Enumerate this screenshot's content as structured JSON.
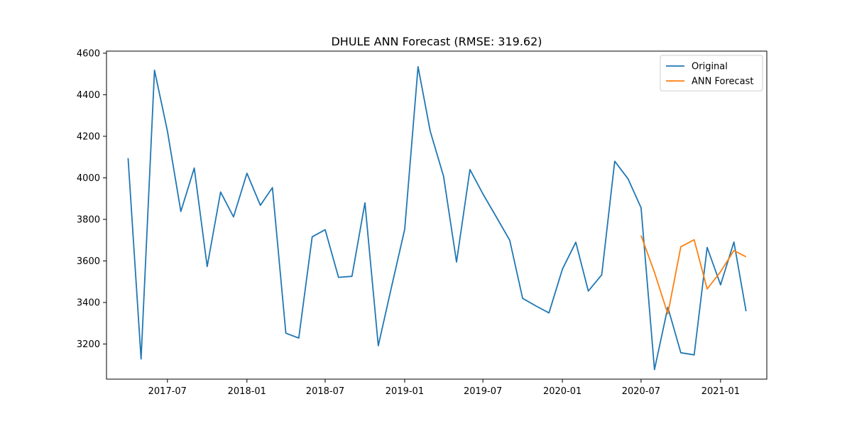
{
  "chart_data": {
    "type": "line",
    "title": "DHULE ANN Forecast (RMSE: 319.62)",
    "xlabel": "",
    "ylabel": "",
    "x_tick_labels": [
      "2017-07",
      "2018-01",
      "2018-07",
      "2019-01",
      "2019-07",
      "2020-01",
      "2020-07",
      "2021-01"
    ],
    "x_ticks": [
      "2017-07-01",
      "2018-01-01",
      "2018-07-01",
      "2019-01-01",
      "2019-07-01",
      "2020-01-01",
      "2020-07-01",
      "2021-01-01"
    ],
    "y_ticks": [
      3200,
      3400,
      3600,
      3800,
      4000,
      4200,
      4400,
      4600
    ],
    "xlim": [
      "2017-02-10",
      "2021-04-18"
    ],
    "ylim": [
      3031,
      4610
    ],
    "grid": false,
    "legend_position": "top-right",
    "series": [
      {
        "name": "Original",
        "color": "#1f77b4",
        "x": [
          "2017-04-01",
          "2017-05-01",
          "2017-06-01",
          "2017-07-01",
          "2017-08-01",
          "2017-09-01",
          "2017-10-01",
          "2017-11-01",
          "2017-12-01",
          "2018-01-01",
          "2018-02-01",
          "2018-03-01",
          "2018-04-01",
          "2018-05-01",
          "2018-06-01",
          "2018-07-01",
          "2018-08-01",
          "2018-09-01",
          "2018-10-01",
          "2018-11-01",
          "2018-12-01",
          "2019-01-01",
          "2019-02-01",
          "2019-03-01",
          "2019-04-01",
          "2019-05-01",
          "2019-06-01",
          "2019-07-01",
          "2019-08-01",
          "2019-09-01",
          "2019-10-01",
          "2019-11-01",
          "2019-12-01",
          "2020-01-01",
          "2020-02-01",
          "2020-03-01",
          "2020-04-01",
          "2020-05-01",
          "2020-06-01",
          "2020-07-01",
          "2020-08-01",
          "2020-09-01",
          "2020-10-01",
          "2020-11-01",
          "2020-12-01",
          "2021-01-01",
          "2021-02-01",
          "2021-03-01"
        ],
        "values": [
          4095,
          3128,
          4518,
          4225,
          3838,
          4047,
          3573,
          3932,
          3812,
          4022,
          3868,
          3953,
          3252,
          3229,
          3716,
          3750,
          3521,
          3526,
          3880,
          3192,
          3470,
          3752,
          4535,
          4225,
          4008,
          3595,
          4040,
          3923,
          3812,
          3700,
          3420,
          3383,
          3350,
          3560,
          3690,
          3455,
          3533,
          4080,
          3995,
          3856,
          3077,
          3377,
          3158,
          3148,
          3665,
          3485,
          3691,
          3358
        ]
      },
      {
        "name": "ANN Forecast",
        "color": "#ff7f0e",
        "x": [
          "2020-07-01",
          "2020-08-01",
          "2020-09-01",
          "2020-10-01",
          "2020-11-01",
          "2020-12-01",
          "2021-01-01",
          "2021-02-01",
          "2021-03-01"
        ],
        "values": [
          3722,
          3545,
          3345,
          3668,
          3702,
          3465,
          3548,
          3650,
          3620
        ]
      }
    ]
  }
}
